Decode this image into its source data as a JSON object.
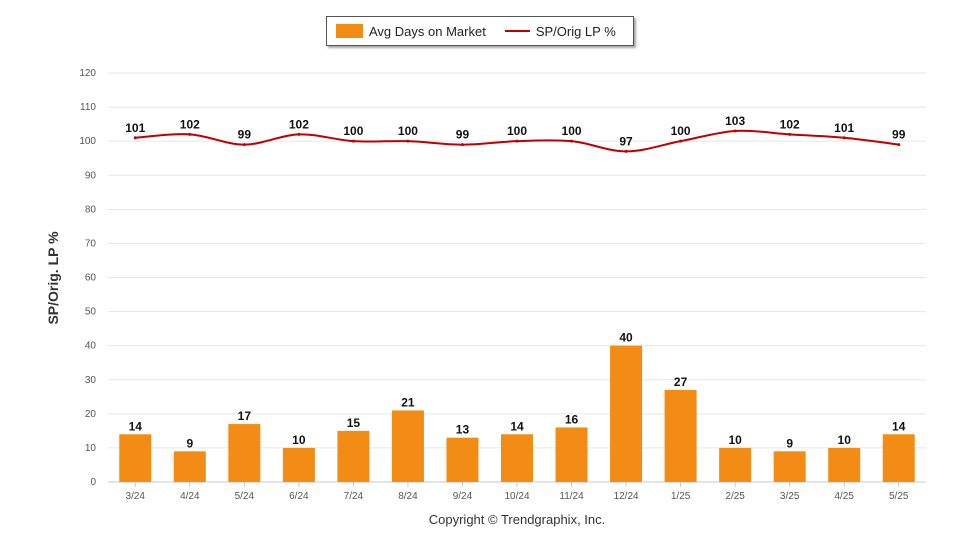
{
  "chart_data": {
    "type": "bar",
    "categories": [
      "3/24",
      "4/24",
      "5/24",
      "6/24",
      "7/24",
      "8/24",
      "9/24",
      "10/24",
      "11/24",
      "12/24",
      "1/25",
      "2/25",
      "3/25",
      "4/25",
      "5/25"
    ],
    "series": [
      {
        "name": "Avg Days on Market",
        "type": "bar",
        "color": "#f28c14",
        "values": [
          14,
          9,
          17,
          10,
          15,
          21,
          13,
          14,
          16,
          40,
          27,
          10,
          9,
          10,
          14
        ]
      },
      {
        "name": "SP/Orig LP %",
        "type": "line",
        "color": "#c00000",
        "values": [
          101,
          102,
          99,
          102,
          100,
          100,
          99,
          100,
          100,
          97,
          100,
          103,
          102,
          101,
          99
        ]
      }
    ],
    "ylabel": "SP/Orig. LP %",
    "ylim": [
      0,
      120
    ],
    "yticks": [
      0,
      10,
      20,
      30,
      40,
      50,
      60,
      70,
      80,
      90,
      100,
      110,
      120
    ],
    "grid": true,
    "legend_position": "top-center",
    "data_labels": true
  },
  "footer": {
    "copyright": "Copyright © Trendgraphix, Inc."
  }
}
